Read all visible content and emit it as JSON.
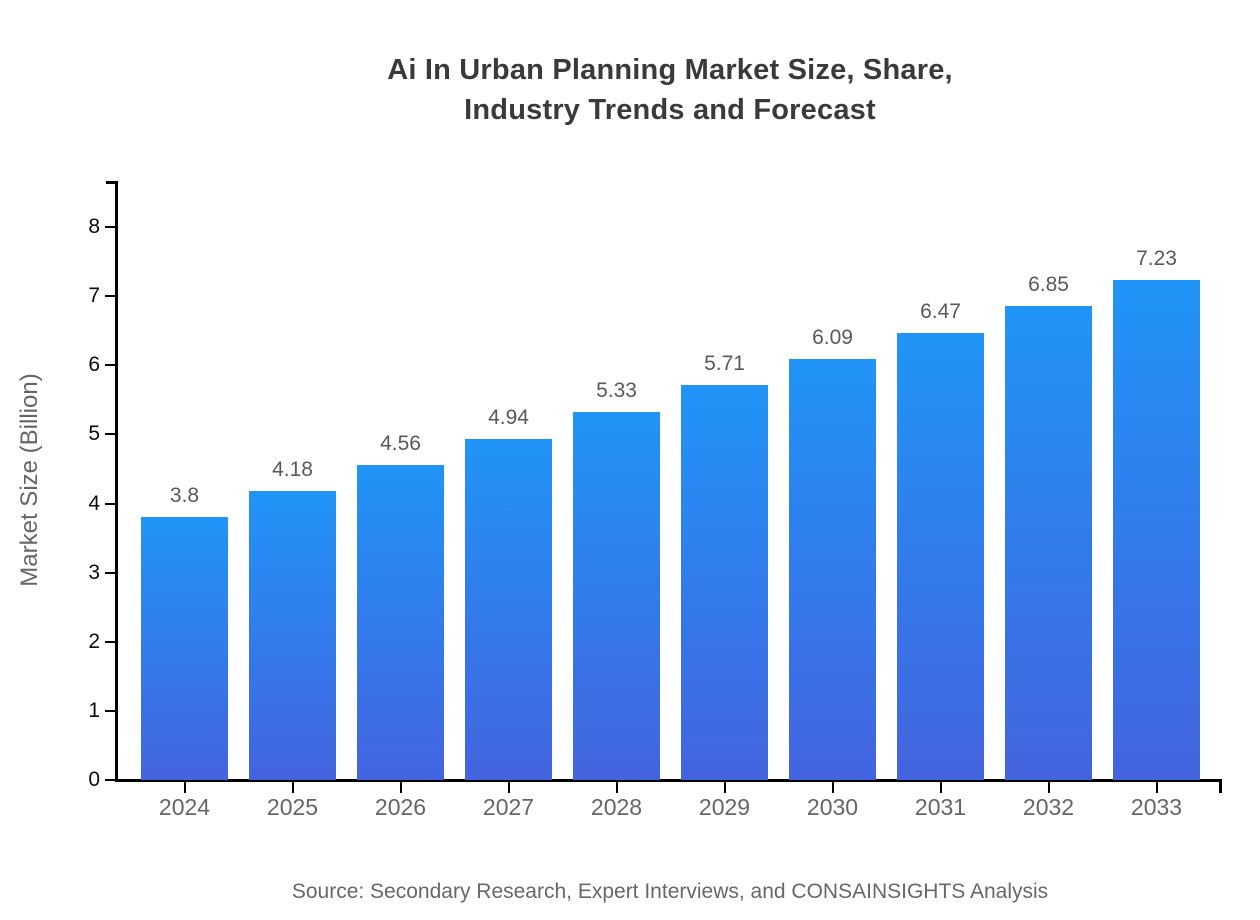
{
  "chart_data": {
    "type": "bar",
    "title": "Ai In Urban Planning Market Size, Share, Industry Trends and Forecast",
    "title_lines": [
      "Ai In Urban Planning Market Size, Share,",
      "Industry Trends and Forecast"
    ],
    "categories": [
      "2024",
      "2025",
      "2026",
      "2027",
      "2028",
      "2029",
      "2030",
      "2031",
      "2032",
      "2033"
    ],
    "values": [
      3.8,
      4.18,
      4.56,
      4.94,
      5.33,
      5.71,
      6.09,
      6.47,
      6.85,
      7.23
    ],
    "value_labels": [
      "3.8",
      "4.18",
      "4.56",
      "4.94",
      "5.33",
      "5.71",
      "6.09",
      "6.47",
      "6.85",
      "7.23"
    ],
    "xlabel": "",
    "ylabel": "Market Size (Billion)",
    "ylim": [
      0,
      8
    ],
    "yticks": [
      0,
      1,
      2,
      3,
      4,
      5,
      6,
      7,
      8
    ],
    "grid": false,
    "legend": false,
    "colors": {
      "bar_gradient_top": "#2094f7",
      "bar_gradient_bottom": "#4464df",
      "axis": "#000000",
      "title_text": "#3a3a3a",
      "ytick_text": "#0c0c0c",
      "xtick_text": "#666666",
      "value_label_text": "#58595b",
      "ylabel_text": "#666666",
      "source_text": "#66686b"
    }
  },
  "footer": {
    "source": "Source: Secondary Research, Expert Interviews, and CONSAINSIGHTS Analysis"
  }
}
